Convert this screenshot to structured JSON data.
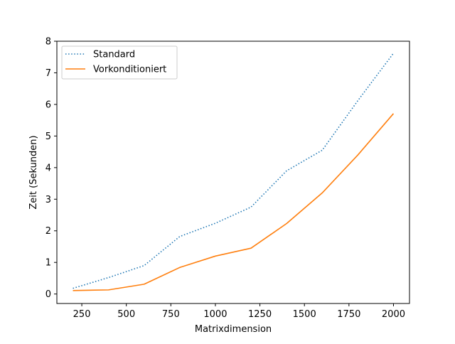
{
  "chart_data": {
    "type": "line",
    "title": "",
    "xlabel": "Matrixdimension",
    "ylabel": "Zeit (Sekunden)",
    "xlim": [
      110,
      2090
    ],
    "ylim": [
      -0.3,
      8
    ],
    "xticks": [
      250,
      500,
      750,
      1000,
      1250,
      1500,
      1750,
      2000
    ],
    "yticks": [
      0,
      1,
      2,
      3,
      4,
      5,
      6,
      7,
      8
    ],
    "grid": false,
    "legend_position": "upper-left",
    "x": [
      200,
      400,
      600,
      800,
      1000,
      1200,
      1400,
      1600,
      1800,
      2000
    ],
    "series": [
      {
        "name": "Standard",
        "color": "#1f77b4",
        "style": "dotted",
        "values": [
          0.18,
          0.52,
          0.9,
          1.82,
          2.24,
          2.75,
          3.9,
          4.55,
          6.12,
          7.62
        ]
      },
      {
        "name": "Vorkonditioniert",
        "color": "#ff7f0e",
        "style": "solid",
        "values": [
          0.11,
          0.13,
          0.31,
          0.84,
          1.2,
          1.45,
          2.23,
          3.2,
          4.4,
          5.71
        ]
      }
    ]
  }
}
